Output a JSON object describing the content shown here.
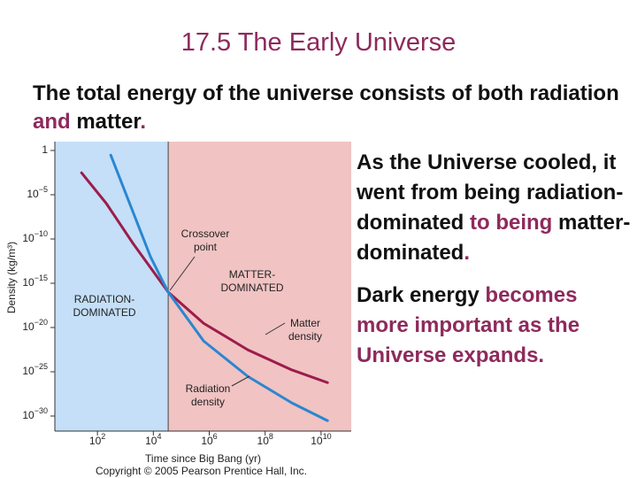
{
  "title": "17.5 The Early Universe",
  "intro": [
    {
      "text": "The total energy of the universe consists of both radiation",
      "accent": false
    },
    {
      "text": " and ",
      "accent": true
    },
    {
      "text": "matter",
      "accent": false
    },
    {
      "text": ".",
      "accent": true
    }
  ],
  "paragraphs": [
    [
      {
        "text": "As the Universe cooled, it went from being radiation-dominated",
        "accent": false
      },
      {
        "text": " to being ",
        "accent": true
      },
      {
        "text": "matter-dominated",
        "accent": false
      },
      {
        "text": ".",
        "accent": true
      }
    ],
    [
      {
        "text": "Dark energy",
        "accent": false
      },
      {
        "text": " becomes more important as the Universe expands.",
        "accent": true
      }
    ]
  ],
  "chart_data": {
    "type": "line",
    "xlabel": "Time since Big Bang (yr)",
    "ylabel": "Density (kg/m³)",
    "xscale": "log",
    "yscale": "log",
    "xlim": [
      3,
      120000000000.0
    ],
    "ylim": [
      2e-32,
      10
    ],
    "xticks": [
      {
        "value": 100,
        "label": "102"
      },
      {
        "value": 10000,
        "label": "104"
      },
      {
        "value": 1000000,
        "label": "106"
      },
      {
        "value": 100000000,
        "label": "108"
      },
      {
        "value": 10000000000,
        "label": "1010"
      }
    ],
    "yticks": [
      1,
      {
        "value": 1e-05,
        "label": "10−5"
      },
      {
        "value": 1e-10,
        "label": "10−10"
      },
      {
        "value": 1e-15,
        "label": "10−15"
      },
      {
        "value": 1e-20,
        "label": "10−20"
      },
      {
        "value": 1e-25,
        "label": "10−25"
      },
      {
        "value": 1e-30,
        "label": "10−30"
      }
    ],
    "crossover": 34000,
    "regions": [
      {
        "color": "#c4dff7"
      },
      {
        "color": "#f1c3c3"
      }
    ],
    "series": [
      {
        "name": "Matter density",
        "color": "#9c1c4c",
        "x": [
          27,
          210,
          1900,
          34000,
          630000,
          24000000,
          910000000,
          17000000000
        ],
        "values": [
          0.003,
          1e-06,
          3e-11,
          1e-16,
          3e-20,
          3e-23,
          1.6e-25,
          6e-27
        ]
      },
      {
        "name": "Radiation density",
        "color": "#2b86d0",
        "x": [
          300,
          1900,
          7900,
          34000,
          630000,
          24000000,
          910000000,
          17000000000
        ],
        "values": [
          0.3,
          1e-07,
          1e-12,
          1e-16,
          3e-22,
          3e-26,
          3e-29,
          3e-31
        ]
      }
    ],
    "annotations": [
      [
        "Crossover",
        "point"
      ],
      [
        "MATTER-",
        "DOMINATED"
      ],
      [
        "RADIATION-",
        "DOMINATED"
      ],
      [
        "Matter",
        "density"
      ],
      [
        "Radiation",
        "density"
      ]
    ],
    "credit": "Copyright © 2005 Pearson Prentice Hall, Inc."
  }
}
